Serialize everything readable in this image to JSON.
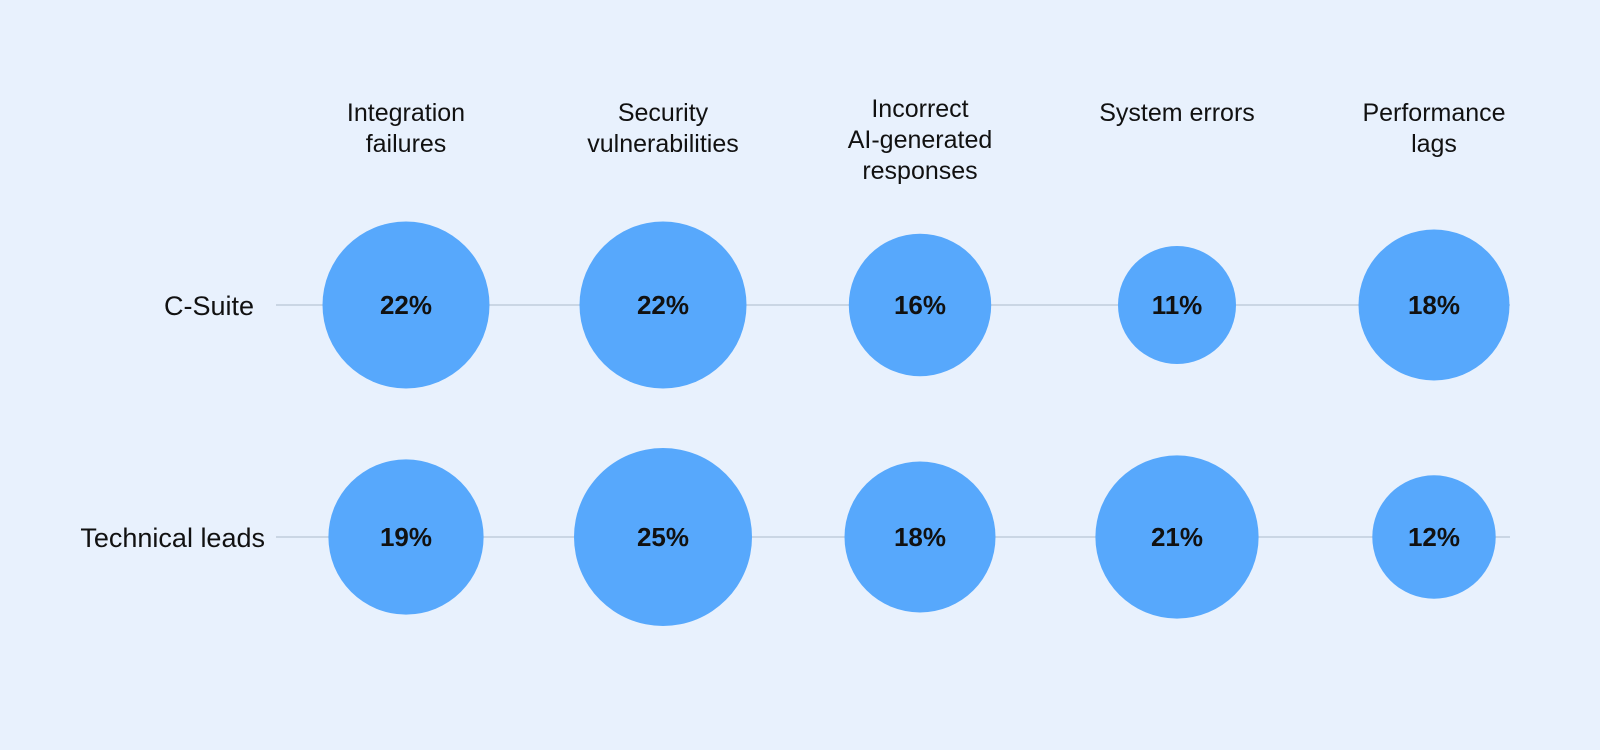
{
  "chart_data": {
    "type": "bubble-matrix",
    "categories": [
      [
        "Integration",
        "failures"
      ],
      [
        "Security",
        "vulnerabilities"
      ],
      [
        "Incorrect",
        "AI-generated",
        "responses"
      ],
      [
        "System errors"
      ],
      [
        "Performance",
        "lags"
      ]
    ],
    "series": [
      {
        "name": "C-Suite",
        "values": [
          22,
          22,
          16,
          11,
          18
        ],
        "labels": [
          "22%",
          "22%",
          "16%",
          "11%",
          "18%"
        ]
      },
      {
        "name": "Technical leads",
        "values": [
          19,
          25,
          18,
          21,
          12
        ],
        "labels": [
          "19%",
          "25%",
          "18%",
          "21%",
          "12%"
        ]
      }
    ],
    "unit": "%",
    "colors": {
      "bubble": "#57a8fc",
      "connector": "#b7c6d6",
      "background": "#e8f1fd",
      "text": "#111111"
    }
  }
}
